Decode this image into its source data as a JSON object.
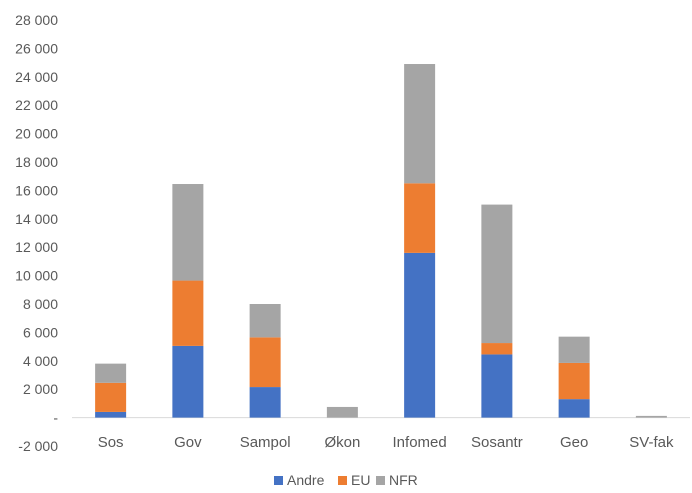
{
  "chart_data": {
    "type": "bar",
    "stacked": true,
    "categories": [
      "Sos",
      "Gov",
      "Sampol",
      "Økon",
      "Infomed",
      "Sosantr",
      "Geo",
      "SV-fak"
    ],
    "series": [
      {
        "name": "Andre",
        "color": "#4472C4",
        "values": [
          400,
          5050,
          2150,
          0,
          11600,
          4450,
          1300,
          0
        ]
      },
      {
        "name": "EU",
        "color": "#ED7D31",
        "values": [
          2050,
          4600,
          3500,
          0,
          4900,
          800,
          2550,
          0
        ]
      },
      {
        "name": "NFR",
        "color": "#A5A5A5",
        "values": [
          1350,
          6800,
          2350,
          750,
          8400,
          9750,
          1850,
          120
        ]
      }
    ],
    "ylim": [
      -2000,
      28000
    ],
    "yticks": [
      -2000,
      0,
      2000,
      4000,
      6000,
      8000,
      10000,
      12000,
      14000,
      16000,
      18000,
      20000,
      22000,
      24000,
      26000,
      28000
    ],
    "ytick_labels": [
      "-2 000",
      "-",
      "2 000",
      "4 000",
      "6 000",
      "8 000",
      "10 000",
      "12 000",
      "14 000",
      "16 000",
      "18 000",
      "20 000",
      "22 000",
      "24 000",
      "26 000",
      "28 000"
    ],
    "grid": false,
    "legend_position": "bottom",
    "title": "",
    "xlabel": "",
    "ylabel": ""
  }
}
